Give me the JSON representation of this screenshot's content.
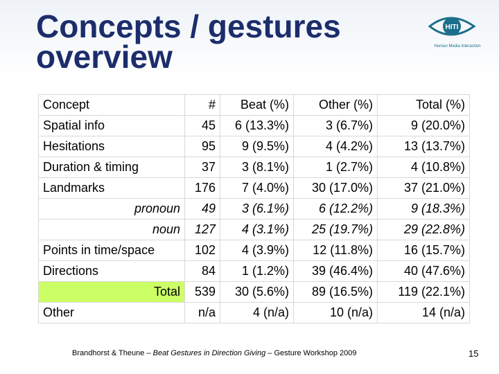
{
  "header": {
    "title": "Concepts / gestures overview",
    "logo_mark": "HITI",
    "logo_caption": "Human Media Interaction"
  },
  "table": {
    "header": [
      "Concept",
      "#",
      "Beat (%)",
      "Other (%)",
      "Total (%)"
    ],
    "rows": [
      [
        "Spatial info",
        "45",
        "6 (13.3%)",
        "3 (6.7%)",
        "9 (20.0%)"
      ],
      [
        "Hesitations",
        "95",
        "9 (9.5%)",
        "4 (4.2%)",
        "13 (13.7%)"
      ],
      [
        "Duration & timing",
        "37",
        "3 (8.1%)",
        "1 (2.7%)",
        "4 (10.8%)"
      ],
      [
        "Landmarks",
        "176",
        "7 (4.0%)",
        "30 (17.0%)",
        "37 (21.0%)"
      ],
      [
        "pronoun",
        "49",
        "3 (6.1%)",
        "6 (12.2%)",
        "9 (18.3%)"
      ],
      [
        "noun",
        "127",
        "4 (3.1%)",
        "25 (19.7%)",
        "29 (22.8%)"
      ],
      [
        "Points in time/space",
        "102",
        "4 (3.9%)",
        "12 (11.8%)",
        "16 (15.7%)"
      ],
      [
        "Directions",
        "84",
        "1 (1.2%)",
        "39 (46.4%)",
        "40 (47.6%)"
      ],
      [
        "Total",
        "539",
        "30 (5.6%)",
        "89 (16.5%)",
        "119 (22.1%)"
      ],
      [
        "Other",
        "n/a",
        "4 (n/a)",
        "10 (n/a)",
        "14 (n/a)"
      ]
    ]
  },
  "footer": {
    "authors": "Brandhorst & Theune – ",
    "talk": "Beat Gestures in Direction Giving",
    "venue": " – Gesture Workshop 2009",
    "page": "15"
  }
}
